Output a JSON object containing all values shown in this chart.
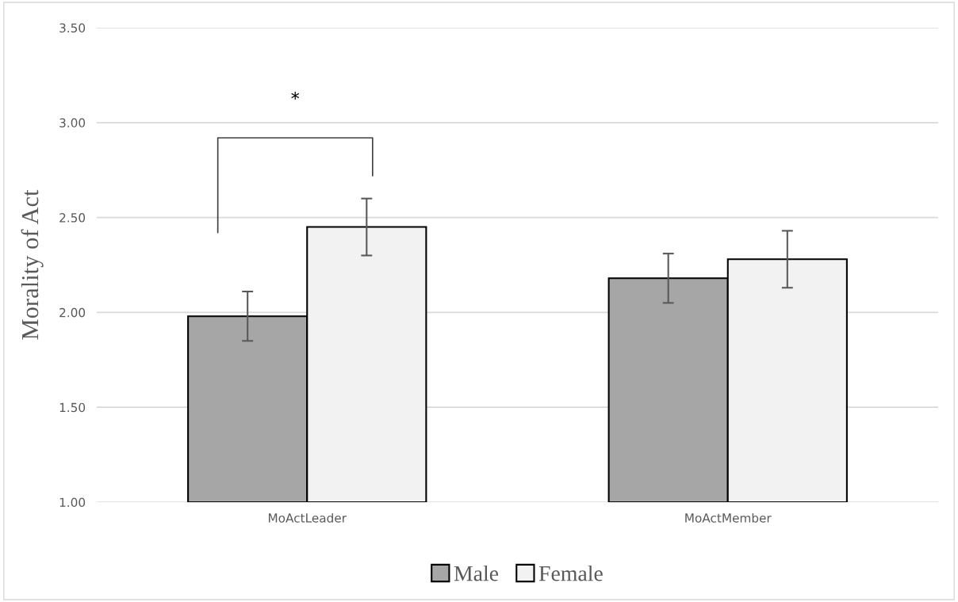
{
  "chart_data": {
    "type": "bar",
    "ylabel": "Morality of Act",
    "categories": [
      "MoActLeader",
      "MoActMember"
    ],
    "series": [
      {
        "name": "Male",
        "color": "#a6a6a6",
        "values": [
          1.98,
          2.18
        ],
        "errors": [
          0.13,
          0.13
        ]
      },
      {
        "name": "Female",
        "color": "#f2f2f2",
        "values": [
          2.45,
          2.28
        ],
        "errors": [
          0.15,
          0.15
        ]
      }
    ],
    "ylim": [
      1.0,
      3.5
    ],
    "yticks": [
      {
        "value": 1.0,
        "label": "1.00"
      },
      {
        "value": 1.5,
        "label": "1.50"
      },
      {
        "value": 2.0,
        "label": "2.00"
      },
      {
        "value": 2.5,
        "label": "2.50"
      },
      {
        "value": 3.0,
        "label": "3.00"
      },
      {
        "value": 3.5,
        "label": "3.50"
      }
    ],
    "grid": "y",
    "legend": "bottom",
    "annotations": [
      "*"
    ]
  }
}
